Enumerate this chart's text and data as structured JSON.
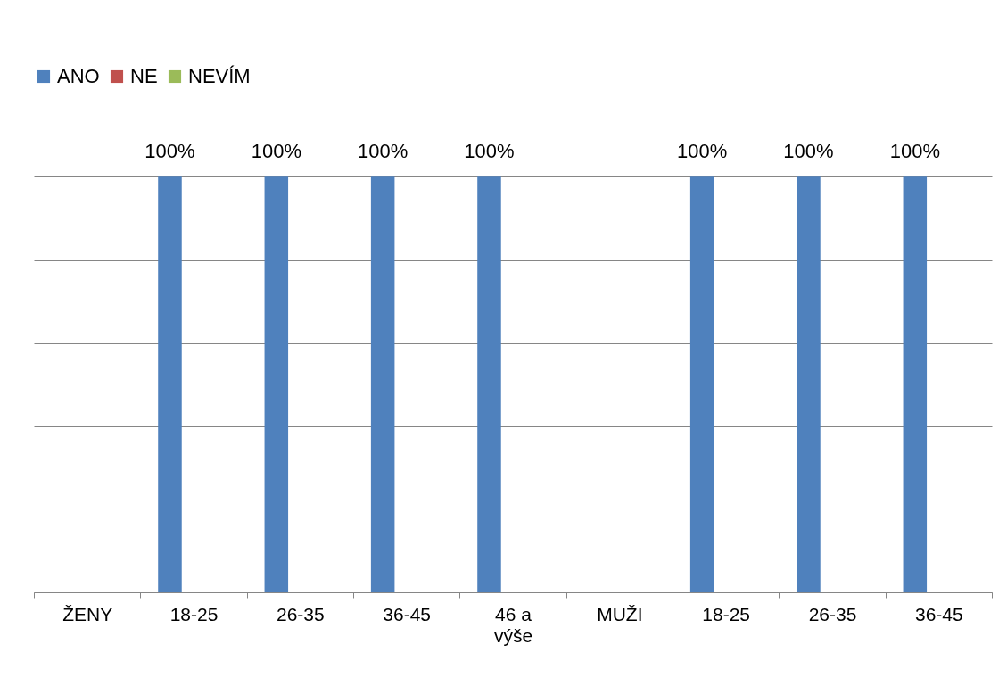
{
  "chart_data": {
    "type": "bar",
    "categories": [
      "ŽENY",
      "18-25",
      "26-35",
      "36-45",
      "46 a výše",
      "MUŽI",
      "18-25",
      "26-35",
      "36-45"
    ],
    "series": [
      {
        "name": "ANO",
        "color": "#4f81bd",
        "values": [
          null,
          100,
          100,
          100,
          100,
          null,
          100,
          100,
          100
        ],
        "value_labels": [
          null,
          "100%",
          "100%",
          "100%",
          "100%",
          null,
          "100%",
          "100%",
          "100%"
        ]
      },
      {
        "name": "NE",
        "color": "#c0504d",
        "values": [
          null,
          null,
          null,
          null,
          null,
          null,
          null,
          null,
          null
        ]
      },
      {
        "name": "NEVÍM",
        "color": "#9bbb59",
        "values": [
          null,
          null,
          null,
          null,
          null,
          null,
          null,
          null,
          null
        ]
      }
    ],
    "ylim": [
      0,
      120
    ],
    "yticks": [
      {
        "value": 0,
        "label": null
      },
      {
        "value": 20,
        "label": null
      },
      {
        "value": 40,
        "label": null
      },
      {
        "value": 60,
        "label": null
      },
      {
        "value": 80,
        "label": null
      },
      {
        "value": 100,
        "label": null
      },
      {
        "value": 120,
        "label": null
      }
    ],
    "tick_labels": "x",
    "grid": "y",
    "legend": "top"
  }
}
